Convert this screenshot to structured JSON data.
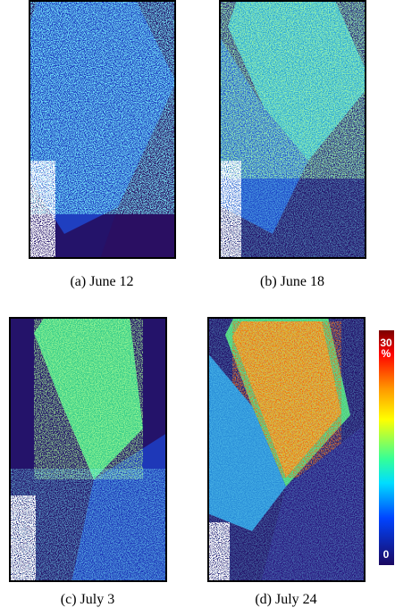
{
  "panels": [
    {
      "caption": "(a) June 12"
    },
    {
      "caption": "(b) June 18"
    },
    {
      "caption": "(c) July 3"
    },
    {
      "caption": "(d) July 24"
    }
  ],
  "colorbar": {
    "max_label": "30",
    "unit": "%",
    "min_label": "0"
  }
}
